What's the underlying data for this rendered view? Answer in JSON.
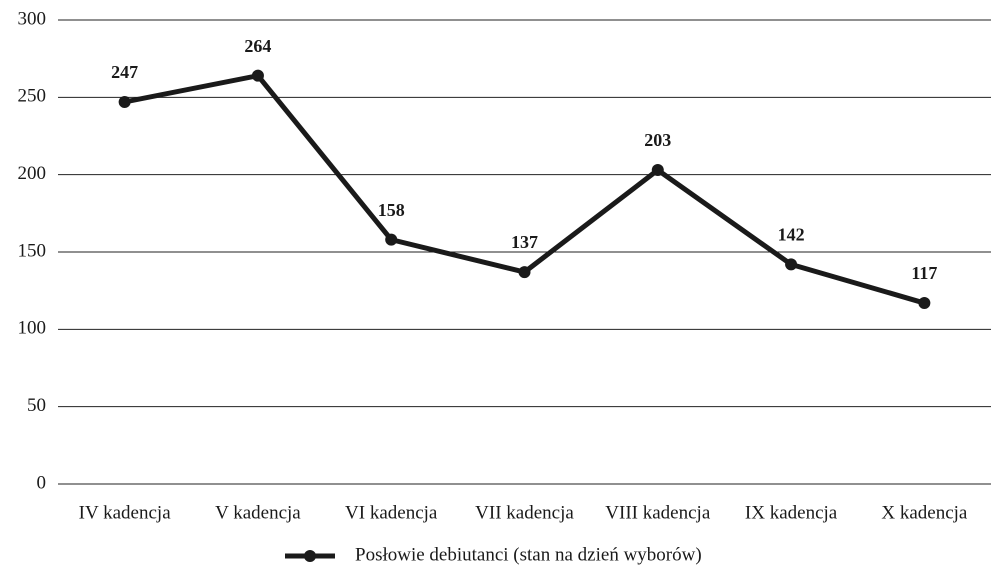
{
  "chart_data": {
    "type": "line",
    "categories": [
      "IV kadencja",
      "V kadencja",
      "VI kadencja",
      "VII kadencja",
      "VIII kadencja",
      "IX kadencja",
      "X kadencja"
    ],
    "series": [
      {
        "name": "Posłowie debiutanci (stan na dzień wyborów)",
        "color": "#1a1a1a",
        "values": [
          247,
          264,
          158,
          137,
          203,
          142,
          117
        ]
      }
    ],
    "ylim": [
      0,
      300
    ],
    "yticks": [
      0,
      50,
      100,
      150,
      200,
      250,
      300
    ],
    "grid": true,
    "legend": "bottom"
  }
}
